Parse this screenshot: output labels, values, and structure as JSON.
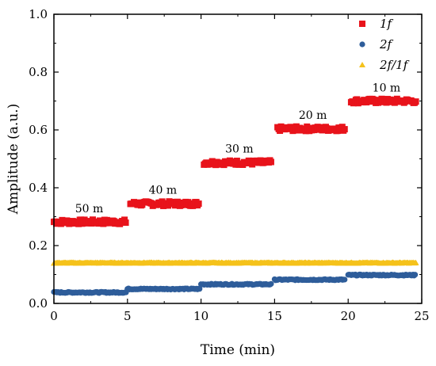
{
  "chart_data": {
    "type": "scatter",
    "title": "",
    "xlabel": "Time (min)",
    "ylabel": "Amplitude (a.u.)",
    "xlim": [
      0,
      25
    ],
    "ylim": [
      0.0,
      1.0
    ],
    "xticks": [
      "0",
      "5",
      "10",
      "15",
      "20",
      "25"
    ],
    "yticks": [
      "0.0",
      "0.2",
      "0.4",
      "0.6",
      "0.8",
      "1.0"
    ],
    "grid": false,
    "legend_position": "top-right",
    "series": [
      {
        "name": "1f",
        "marker": "square",
        "color": "#e8131b",
        "segments": [
          {
            "x_start": 0.0,
            "x_end": 4.9,
            "y": 0.282
          },
          {
            "x_start": 5.2,
            "x_end": 9.9,
            "y": 0.345
          },
          {
            "x_start": 10.2,
            "x_end": 14.8,
            "y": 0.487
          },
          {
            "x_start": 15.2,
            "x_end": 19.8,
            "y": 0.604
          },
          {
            "x_start": 20.2,
            "x_end": 24.6,
            "y": 0.7
          }
        ]
      },
      {
        "name": "2f",
        "marker": "circle",
        "color": "#2e5d9a",
        "segments": [
          {
            "x_start": 0.0,
            "x_end": 4.9,
            "y": 0.038
          },
          {
            "x_start": 5.0,
            "x_end": 9.9,
            "y": 0.05
          },
          {
            "x_start": 10.0,
            "x_end": 14.8,
            "y": 0.066
          },
          {
            "x_start": 15.0,
            "x_end": 19.8,
            "y": 0.082
          },
          {
            "x_start": 20.0,
            "x_end": 24.6,
            "y": 0.098
          }
        ]
      },
      {
        "name": "2f/1f",
        "marker": "triangle",
        "color": "#f5c21b",
        "segments": [
          {
            "x_start": 0.0,
            "x_end": 24.6,
            "y": 0.14
          }
        ]
      }
    ],
    "annotations": [
      {
        "text": "50 m",
        "x": 2.4,
        "y": 0.315
      },
      {
        "text": "40 m",
        "x": 7.4,
        "y": 0.38
      },
      {
        "text": "30 m",
        "x": 12.6,
        "y": 0.522
      },
      {
        "text": "20 m",
        "x": 17.6,
        "y": 0.638
      },
      {
        "text": "10 m",
        "x": 22.6,
        "y": 0.733
      }
    ]
  }
}
